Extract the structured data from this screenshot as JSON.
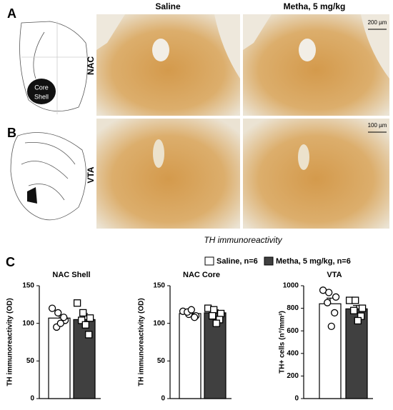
{
  "figure": {
    "panels": [
      "A",
      "B",
      "C"
    ],
    "columns": [
      "Saline",
      "Metha, 5 mg/kg"
    ],
    "rows": [
      "NAC",
      "VTA"
    ],
    "atlas_labels": [
      "Core",
      "Shell"
    ],
    "scale_bars": [
      "200 µm",
      "100 µm"
    ],
    "caption": "TH immunoreactivity"
  },
  "legend": [
    {
      "name": "Saline, n=6",
      "color": "#ffffff"
    },
    {
      "name": "Metha, 5 mg/kg, n=6",
      "color": "#404040"
    }
  ],
  "chart_data": [
    {
      "type": "bar",
      "title": "NAC Shell",
      "ylabel": "TH immunoreactivity (OD)",
      "ylim": [
        0,
        150
      ],
      "yticks": [
        0,
        50,
        100,
        150
      ],
      "series": [
        {
          "values": 107,
          "errors": 4,
          "points": [
            120,
            114,
            104,
            95,
            108,
            100
          ]
        },
        {
          "values": 105,
          "errors": 8,
          "points": [
            127,
            114,
            107,
            104,
            85,
            98
          ]
        }
      ]
    },
    {
      "type": "bar",
      "title": "NAC Core",
      "ylabel": "TH immunoreactivity (OD)",
      "ylim": [
        0,
        150
      ],
      "yticks": [
        0,
        50,
        100,
        150
      ],
      "series": [
        {
          "values": 113,
          "errors": 3,
          "points": [
            116,
            112,
            110,
            115,
            108,
            118
          ]
        },
        {
          "values": 114,
          "errors": 4,
          "points": [
            120,
            118,
            113,
            110,
            105,
            100
          ]
        }
      ]
    },
    {
      "type": "bar",
      "title": "VTA",
      "ylabel": "TH+ cells (n°/mm²)",
      "ylim": [
        0,
        1000
      ],
      "yticks": [
        0,
        200,
        400,
        600,
        800,
        1000
      ],
      "series": [
        {
          "values": 840,
          "errors": 50,
          "points": [
            960,
            940,
            900,
            850,
            760,
            640
          ]
        },
        {
          "values": 795,
          "errors": 30,
          "points": [
            870,
            870,
            800,
            780,
            730,
            690
          ]
        }
      ]
    }
  ]
}
